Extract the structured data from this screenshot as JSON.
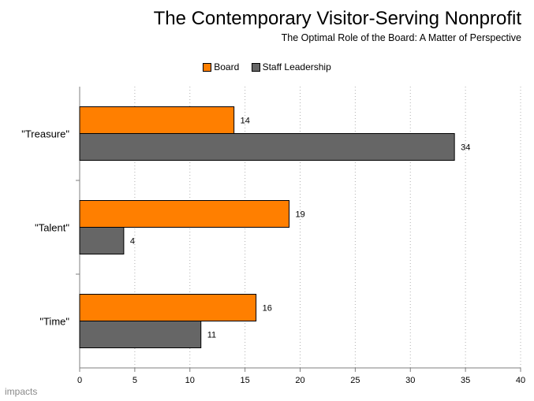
{
  "chart_data": {
    "type": "bar",
    "orientation": "horizontal",
    "title": "The Contemporary Visitor-Serving Nonprofit",
    "subtitle": "The Optimal Role of the Board: A Matter of Perspective",
    "categories": [
      "\"Treasure\"",
      "\"Talent\"",
      "\"Time\""
    ],
    "series": [
      {
        "name": "Board",
        "color": "#ff7f00",
        "values": [
          14,
          19,
          16
        ]
      },
      {
        "name": "Staff Leadership",
        "color": "#666666",
        "values": [
          34,
          4,
          11
        ]
      }
    ],
    "xlim": [
      0,
      40
    ],
    "xticks": [
      0,
      5,
      10,
      15,
      20,
      25,
      30,
      35,
      40
    ],
    "grid": "vertical dotted",
    "legend": "top-center"
  },
  "logo_text": "impacts"
}
